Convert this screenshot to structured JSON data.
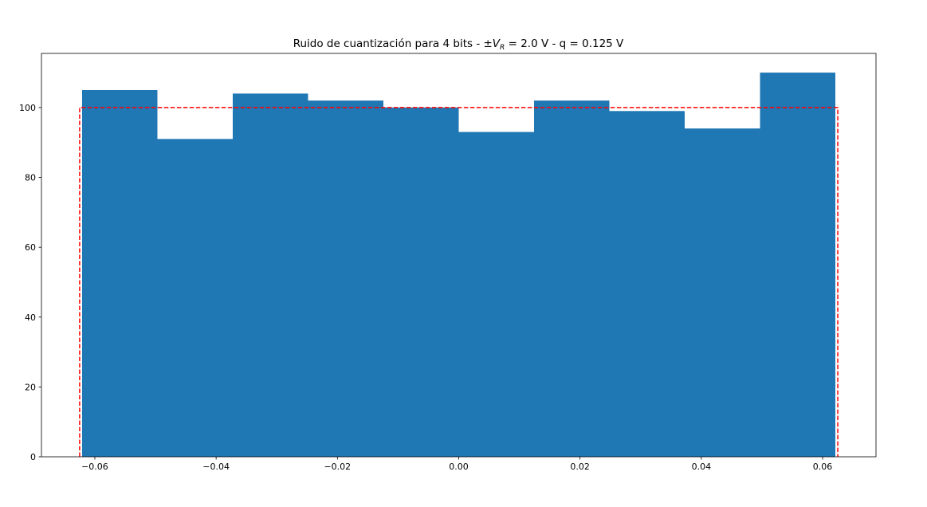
{
  "chart_data": {
    "type": "bar",
    "title": {
      "prefix": "Ruido de cuantización para 4 bits - ±",
      "symbol": "V",
      "subscript": "R",
      "suffix": " =  2.0 V - q = 0.125 V"
    },
    "xlabel": "",
    "ylabel": "",
    "xlim": [
      -0.0688,
      0.0688
    ],
    "ylim": [
      0,
      115.5
    ],
    "xticks": [
      {
        "value": -0.06,
        "label": "−0.06"
      },
      {
        "value": -0.04,
        "label": "−0.04"
      },
      {
        "value": -0.02,
        "label": "−0.02"
      },
      {
        "value": 0.0,
        "label": "0.00"
      },
      {
        "value": 0.02,
        "label": "0.02"
      },
      {
        "value": 0.04,
        "label": "0.04"
      },
      {
        "value": 0.06,
        "label": "0.06"
      }
    ],
    "yticks": [
      {
        "value": 0,
        "label": "0"
      },
      {
        "value": 20,
        "label": "20"
      },
      {
        "value": 40,
        "label": "40"
      },
      {
        "value": 60,
        "label": "60"
      },
      {
        "value": 80,
        "label": "80"
      },
      {
        "value": 100,
        "label": "100"
      }
    ],
    "histogram": {
      "bin_edges": [
        -0.0621,
        -0.04968,
        -0.03726,
        -0.02484,
        -0.01242,
        0.0,
        0.01242,
        0.02484,
        0.03726,
        0.04968,
        0.0621
      ],
      "counts": [
        105,
        91,
        104,
        102,
        100,
        93,
        102,
        99,
        94,
        110
      ],
      "color": "#1f77b4"
    },
    "reference_line": {
      "x_start": -0.0625,
      "x_end": 0.0625,
      "level": 100,
      "color": "#ff0000",
      "style": "dashed"
    },
    "grid": false,
    "legend": "none"
  }
}
